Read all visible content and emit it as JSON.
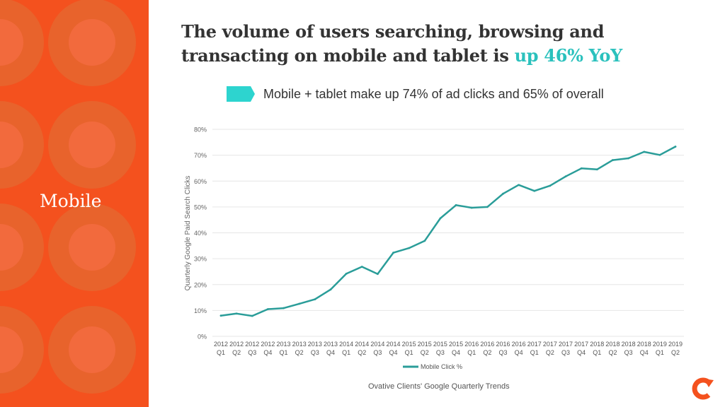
{
  "sidebar": {
    "label": "Mobile",
    "colors": {
      "bg": "#f4511e",
      "ring": "#e8632c",
      "inner": "#f26a3d"
    }
  },
  "headline": {
    "line1": "The volume of users searching, browsing and",
    "line2_prefix": "transacting on mobile and tablet is ",
    "line2_accent": "up 46% YoY",
    "accent_color": "#2bc1bd"
  },
  "subhead": {
    "text": "Mobile + tablet make up 74% of ad clicks and 65% of overall",
    "arrow_color": "#2dd4cf"
  },
  "chart_data": {
    "type": "line",
    "title": "",
    "xlabel": "",
    "ylabel": "Quarterly Google Paid Search Clicks",
    "ylim": [
      0,
      80
    ],
    "yticks": [
      "0%",
      "10%",
      "20%",
      "30%",
      "40%",
      "50%",
      "60%",
      "70%",
      "80%"
    ],
    "grid": true,
    "legend": "bottom",
    "categories": [
      [
        "2012",
        "Q1"
      ],
      [
        "2012",
        "Q2"
      ],
      [
        "2012",
        "Q3"
      ],
      [
        "2012",
        "Q4"
      ],
      [
        "2013",
        "Q1"
      ],
      [
        "2013",
        "Q2"
      ],
      [
        "2013",
        "Q3"
      ],
      [
        "2013",
        "Q4"
      ],
      [
        "2014",
        "Q1"
      ],
      [
        "2014",
        "Q2"
      ],
      [
        "2014",
        "Q3"
      ],
      [
        "2014",
        "Q4"
      ],
      [
        "2015",
        "Q1"
      ],
      [
        "2015",
        "Q2"
      ],
      [
        "2015",
        "Q3"
      ],
      [
        "2015",
        "Q4"
      ],
      [
        "2016",
        "Q1"
      ],
      [
        "2016",
        "Q2"
      ],
      [
        "2016",
        "Q3"
      ],
      [
        "2016",
        "Q4"
      ],
      [
        "2017",
        "Q1"
      ],
      [
        "2017",
        "Q2"
      ],
      [
        "2017",
        "Q3"
      ],
      [
        "2017",
        "Q4"
      ],
      [
        "2018",
        "Q1"
      ],
      [
        "2018",
        "Q2"
      ],
      [
        "2018",
        "Q3"
      ],
      [
        "2018",
        "Q4"
      ],
      [
        "2019",
        "Q1"
      ],
      [
        "2019",
        "Q2"
      ]
    ],
    "series": [
      {
        "name": "Mobile Click %",
        "color": "#2a9d99",
        "values": [
          8.0,
          8.8,
          7.9,
          10.5,
          10.9,
          12.6,
          14.3,
          18.1,
          24.2,
          26.9,
          24.1,
          32.3,
          34.1,
          36.9,
          45.6,
          50.7,
          49.7,
          50.0,
          55.1,
          58.5,
          56.2,
          58.2,
          61.8,
          64.9,
          64.5,
          68.1,
          68.8,
          71.3,
          70.1,
          73.3
        ]
      }
    ]
  },
  "source": "Ovative Clients' Google Quarterly Trends",
  "logo": {
    "color": "#f4511e"
  }
}
